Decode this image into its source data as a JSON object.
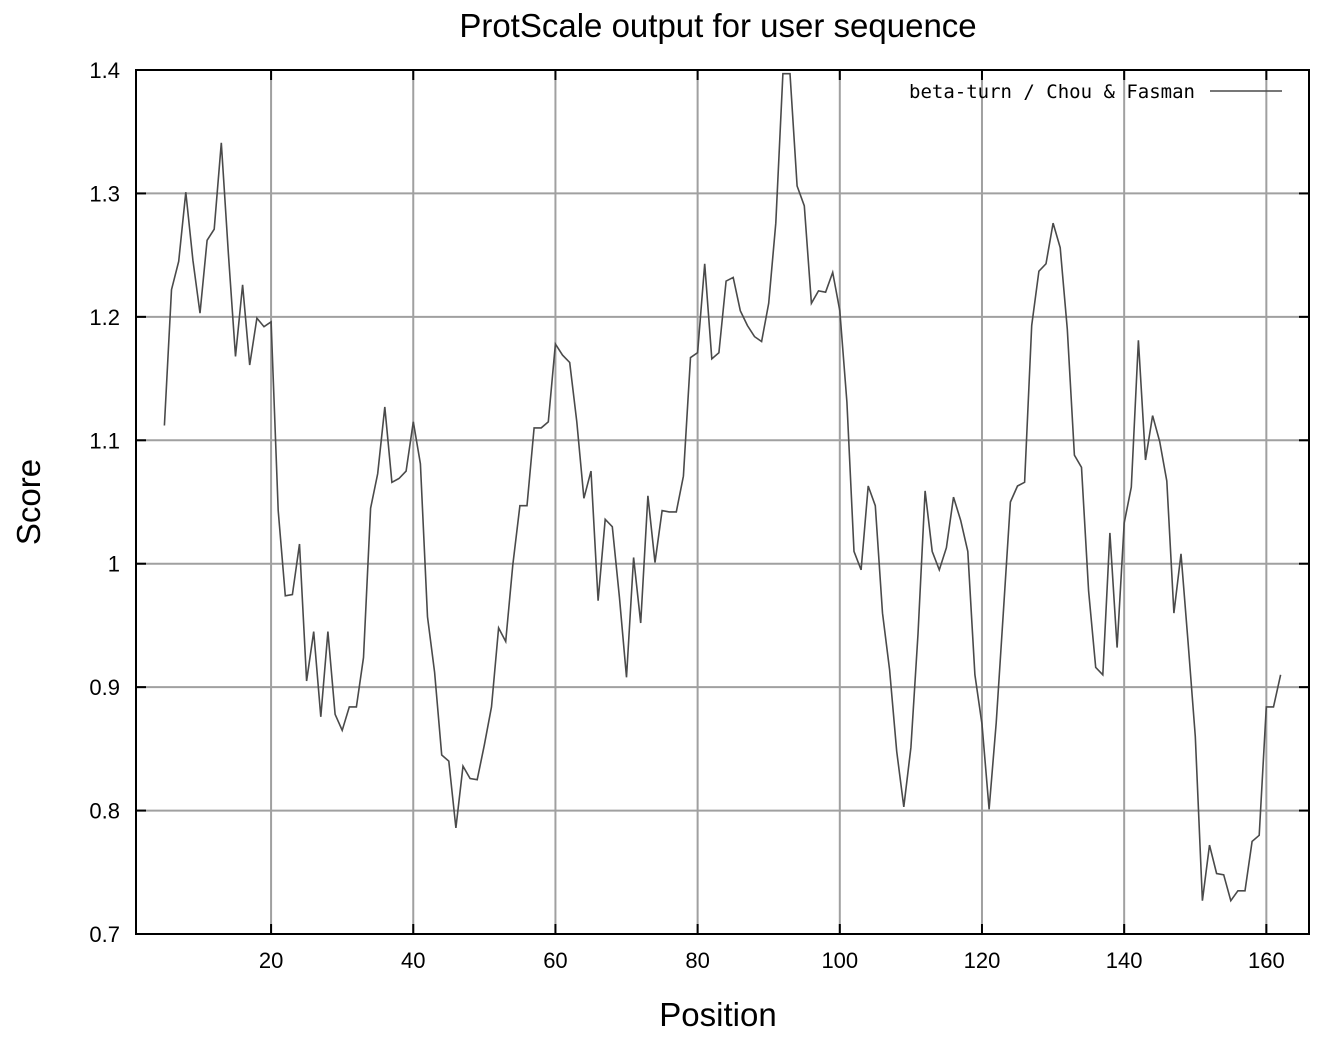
{
  "chart_data": {
    "type": "line",
    "title": "ProtScale output for user sequence",
    "xlabel": "Position",
    "ylabel": "Score",
    "xlim": [
      1,
      166
    ],
    "ylim": [
      0.7,
      1.4
    ],
    "x_ticks": [
      20,
      40,
      60,
      80,
      100,
      120,
      140,
      160
    ],
    "x_tick_labels": [
      "20",
      "40",
      "60",
      "80",
      "100",
      "120",
      "140",
      "160"
    ],
    "y_ticks": [
      0.7,
      0.8,
      0.9,
      1.0,
      1.1,
      1.2,
      1.3,
      1.4
    ],
    "y_tick_labels": [
      "0.7",
      "0.8",
      "0.9",
      "1",
      "1.1",
      "1.2",
      "1.3",
      "1.4"
    ],
    "grid": true,
    "legend_position": "top-right",
    "series": [
      {
        "name": "beta-turn / Chou & Fasman",
        "color": "#4a4a4a",
        "x": [
          5,
          6,
          7,
          8,
          9,
          10,
          11,
          12,
          13,
          14,
          15,
          16,
          17,
          18,
          19,
          20,
          21,
          22,
          23,
          24,
          25,
          26,
          27,
          28,
          29,
          30,
          31,
          32,
          33,
          34,
          35,
          36,
          37,
          38,
          39,
          40,
          41,
          42,
          43,
          44,
          45,
          46,
          47,
          48,
          49,
          50,
          51,
          52,
          53,
          54,
          55,
          56,
          57,
          58,
          59,
          60,
          61,
          62,
          63,
          64,
          65,
          66,
          67,
          68,
          69,
          70,
          71,
          72,
          73,
          74,
          75,
          76,
          77,
          78,
          79,
          80,
          81,
          82,
          83,
          84,
          85,
          86,
          87,
          88,
          89,
          90,
          91,
          92,
          93,
          94,
          95,
          96,
          97,
          98,
          99,
          100,
          101,
          102,
          103,
          104,
          105,
          106,
          107,
          108,
          109,
          110,
          111,
          112,
          113,
          114,
          115,
          116,
          117,
          118,
          119,
          120,
          121,
          122,
          123,
          124,
          125,
          126,
          127,
          128,
          129,
          130,
          131,
          132,
          133,
          134,
          135,
          136,
          137,
          138,
          139,
          140,
          141,
          142,
          143,
          144,
          145,
          146,
          147,
          148,
          149,
          150,
          151,
          152,
          153,
          154,
          155,
          156,
          157,
          158,
          159,
          160,
          161,
          162
        ],
        "y": [
          1.112,
          1.222,
          1.245,
          1.301,
          1.246,
          1.203,
          1.262,
          1.271,
          1.341,
          1.251,
          1.168,
          1.226,
          1.161,
          1.199,
          1.192,
          1.196,
          1.043,
          0.974,
          0.975,
          1.016,
          0.905,
          0.945,
          0.876,
          0.945,
          0.878,
          0.865,
          0.884,
          0.884,
          0.924,
          1.045,
          1.073,
          1.127,
          1.066,
          1.069,
          1.075,
          1.115,
          1.081,
          0.957,
          0.912,
          0.845,
          0.84,
          0.786,
          0.836,
          0.826,
          0.825,
          0.853,
          0.884,
          0.948,
          0.937,
          0.999,
          1.047,
          1.047,
          1.11,
          1.11,
          1.115,
          1.178,
          1.169,
          1.163,
          1.115,
          1.053,
          1.075,
          0.97,
          1.036,
          1.03,
          0.973,
          0.908,
          1.005,
          0.952,
          1.055,
          1.001,
          1.043,
          1.042,
          1.042,
          1.071,
          1.167,
          1.171,
          1.243,
          1.166,
          1.171,
          1.229,
          1.232,
          1.205,
          1.193,
          1.184,
          1.18,
          1.211,
          1.276,
          1.397,
          1.397,
          1.306,
          1.29,
          1.211,
          1.221,
          1.22,
          1.236,
          1.205,
          1.131,
          1.01,
          0.995,
          1.063,
          1.047,
          0.96,
          0.914,
          0.848,
          0.803,
          0.851,
          0.943,
          1.059,
          1.01,
          0.995,
          1.013,
          1.054,
          1.035,
          1.01,
          0.91,
          0.87,
          0.801,
          0.871,
          0.96,
          1.05,
          1.063,
          1.066,
          1.193,
          1.237,
          1.243,
          1.276,
          1.256,
          1.19,
          1.088,
          1.078,
          0.978,
          0.916,
          0.91,
          1.025,
          0.932,
          1.033,
          1.062,
          1.181,
          1.084,
          1.12,
          1.099,
          1.067,
          0.96,
          1.008,
          0.936,
          0.86,
          0.727,
          0.772,
          0.749,
          0.748,
          0.727,
          0.735,
          0.735,
          0.775,
          0.78,
          0.884,
          0.884,
          0.91
        ]
      }
    ]
  }
}
